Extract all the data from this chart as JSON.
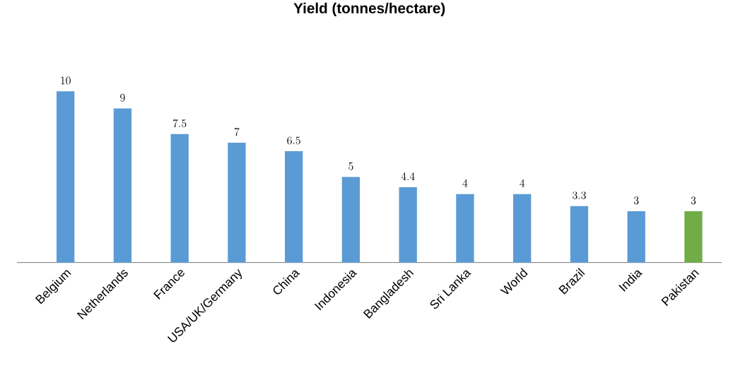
{
  "chart_data": {
    "type": "bar",
    "title": "Yield (tonnes/hectare)",
    "categories": [
      "Belgium",
      "Netherlands",
      "France",
      "USA/UK/Germany",
      "China",
      "Indonesia",
      "Bangladesh",
      "Sri Lanka",
      "World",
      "Brazil",
      "India",
      "Pakistan"
    ],
    "values": [
      10,
      9,
      7.5,
      7,
      6.5,
      5,
      4.4,
      4,
      4,
      3.3,
      3,
      3
    ],
    "colors": [
      "#5b9bd5",
      "#5b9bd5",
      "#5b9bd5",
      "#5b9bd5",
      "#5b9bd5",
      "#5b9bd5",
      "#5b9bd5",
      "#5b9bd5",
      "#5b9bd5",
      "#5b9bd5",
      "#5b9bd5",
      "#70ad47"
    ],
    "data_labels": true
  }
}
